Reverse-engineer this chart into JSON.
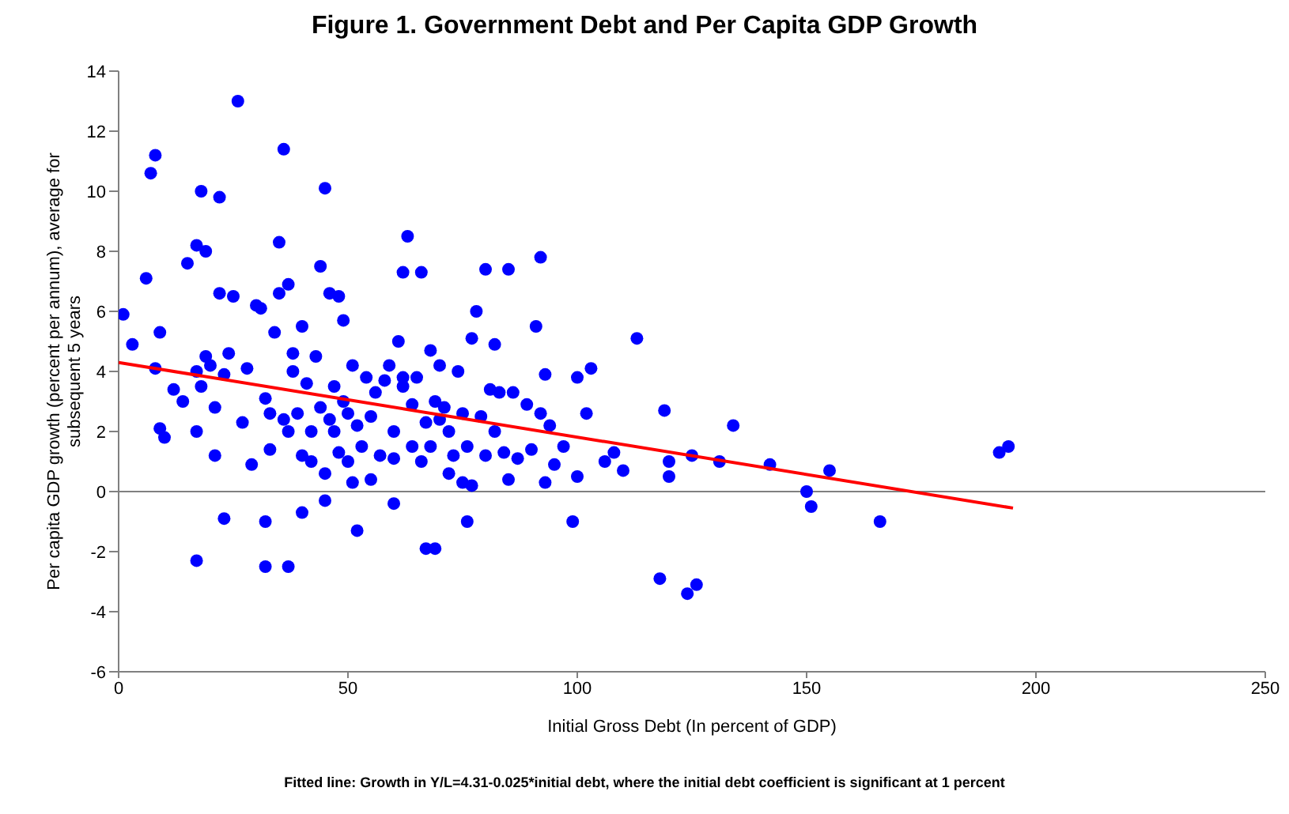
{
  "chart_data": {
    "type": "scatter",
    "title": "Figure 1. Government Debt and Per Capita GDP Growth",
    "xlabel": "Initial Gross Debt (In percent of GDP)",
    "ylabel": "Per capita GDP growth (percent per annum), average for subsequent 5 years",
    "annotations": [
      "Fitted line: Growth in Y/L=4.31-0.025*initial debt, where the initial debt coefficient is significant at 1 percent"
    ],
    "xlim": [
      0,
      250
    ],
    "xticks": [
      0,
      50,
      100,
      150,
      200,
      250
    ],
    "ylim": [
      -6,
      14
    ],
    "yticks": [
      -6,
      -4,
      -2,
      0,
      2,
      4,
      6,
      8,
      10,
      12,
      14
    ],
    "grid": false,
    "legend": false,
    "marker": "circle",
    "ref_lines": [
      {
        "axis": "y",
        "value": 0,
        "color": "#808080"
      }
    ],
    "series": [
      {
        "color": "#0000ff",
        "x": [
          1,
          3,
          6,
          7,
          8,
          8,
          9,
          9,
          10,
          12,
          14,
          15,
          17,
          17,
          17,
          17,
          18,
          18,
          19,
          19,
          20,
          21,
          21,
          22,
          22,
          23,
          23,
          24,
          25,
          26,
          27,
          28,
          29,
          30,
          31,
          32,
          32,
          32,
          33,
          33,
          34,
          35,
          35,
          36,
          36,
          37,
          37,
          37,
          38,
          38,
          39,
          40,
          40,
          40,
          41,
          42,
          42,
          43,
          44,
          44,
          45,
          45,
          45,
          46,
          46,
          47,
          47,
          48,
          48,
          49,
          49,
          50,
          50,
          51,
          51,
          52,
          52,
          53,
          54,
          55,
          55,
          56,
          57,
          58,
          59,
          60,
          60,
          60,
          61,
          62,
          62,
          62,
          63,
          64,
          64,
          65,
          66,
          66,
          67,
          67,
          68,
          68,
          69,
          69,
          70,
          70,
          71,
          72,
          72,
          73,
          74,
          75,
          75,
          76,
          76,
          77,
          77,
          78,
          79,
          80,
          80,
          81,
          82,
          82,
          83,
          84,
          85,
          85,
          86,
          87,
          89,
          90,
          91,
          92,
          92,
          93,
          93,
          94,
          95,
          97,
          99,
          100,
          100,
          102,
          103,
          106,
          108,
          110,
          113,
          118,
          119,
          120,
          120,
          124,
          125,
          126,
          131,
          134,
          142,
          150,
          151,
          155,
          166,
          192,
          194
        ],
        "values": [
          5.9,
          4.9,
          7.1,
          10.6,
          11.2,
          4.1,
          2.1,
          5.3,
          1.8,
          3.4,
          3,
          7.6,
          2,
          4,
          8.2,
          -2.3,
          10,
          3.5,
          8,
          4.5,
          4.2,
          2.8,
          1.2,
          6.6,
          9.8,
          3.9,
          -0.9,
          4.6,
          6.5,
          13,
          2.3,
          4.1,
          0.9,
          6.2,
          6.1,
          3.1,
          -1,
          -2.5,
          1.4,
          2.6,
          5.3,
          6.6,
          8.3,
          11.4,
          2.4,
          2,
          -2.5,
          6.9,
          4.6,
          4,
          2.6,
          1.2,
          -0.7,
          5.5,
          3.6,
          2,
          1,
          4.5,
          7.5,
          2.8,
          10.1,
          0.6,
          -0.3,
          6.6,
          2.4,
          3.5,
          2,
          6.5,
          1.3,
          3,
          5.7,
          2.6,
          1,
          4.2,
          0.3,
          -1.3,
          2.2,
          1.5,
          3.8,
          2.5,
          0.4,
          3.3,
          1.2,
          3.7,
          4.2,
          2,
          1.1,
          -0.4,
          5,
          3.5,
          7.3,
          3.8,
          8.5,
          2.9,
          1.5,
          3.8,
          1,
          7.3,
          2.3,
          -1.9,
          4.7,
          1.5,
          3,
          -1.9,
          2.4,
          4.2,
          2.8,
          2,
          0.6,
          1.2,
          4,
          2.6,
          0.3,
          -1,
          1.5,
          5.1,
          0.2,
          6,
          2.5,
          1.2,
          7.4,
          3.4,
          2,
          4.9,
          3.3,
          1.3,
          0.4,
          7.4,
          3.3,
          1.1,
          2.9,
          1.4,
          5.5,
          7.8,
          2.6,
          3.9,
          0.3,
          2.2,
          0.9,
          1.5,
          -1,
          3.8,
          0.5,
          2.6,
          4.1,
          1,
          1.3,
          0.7,
          5.1,
          -2.9,
          2.7,
          0.5,
          1,
          -3.4,
          1.2,
          -3.1,
          1,
          2.2,
          0.9,
          0,
          -0.5,
          0.7,
          -1,
          1.3,
          1.5
        ]
      },
      {
        "type": "line",
        "color": "#ff0000",
        "marker": "none",
        "x": [
          0,
          195
        ],
        "values": [
          4.3,
          -0.55
        ]
      }
    ]
  }
}
